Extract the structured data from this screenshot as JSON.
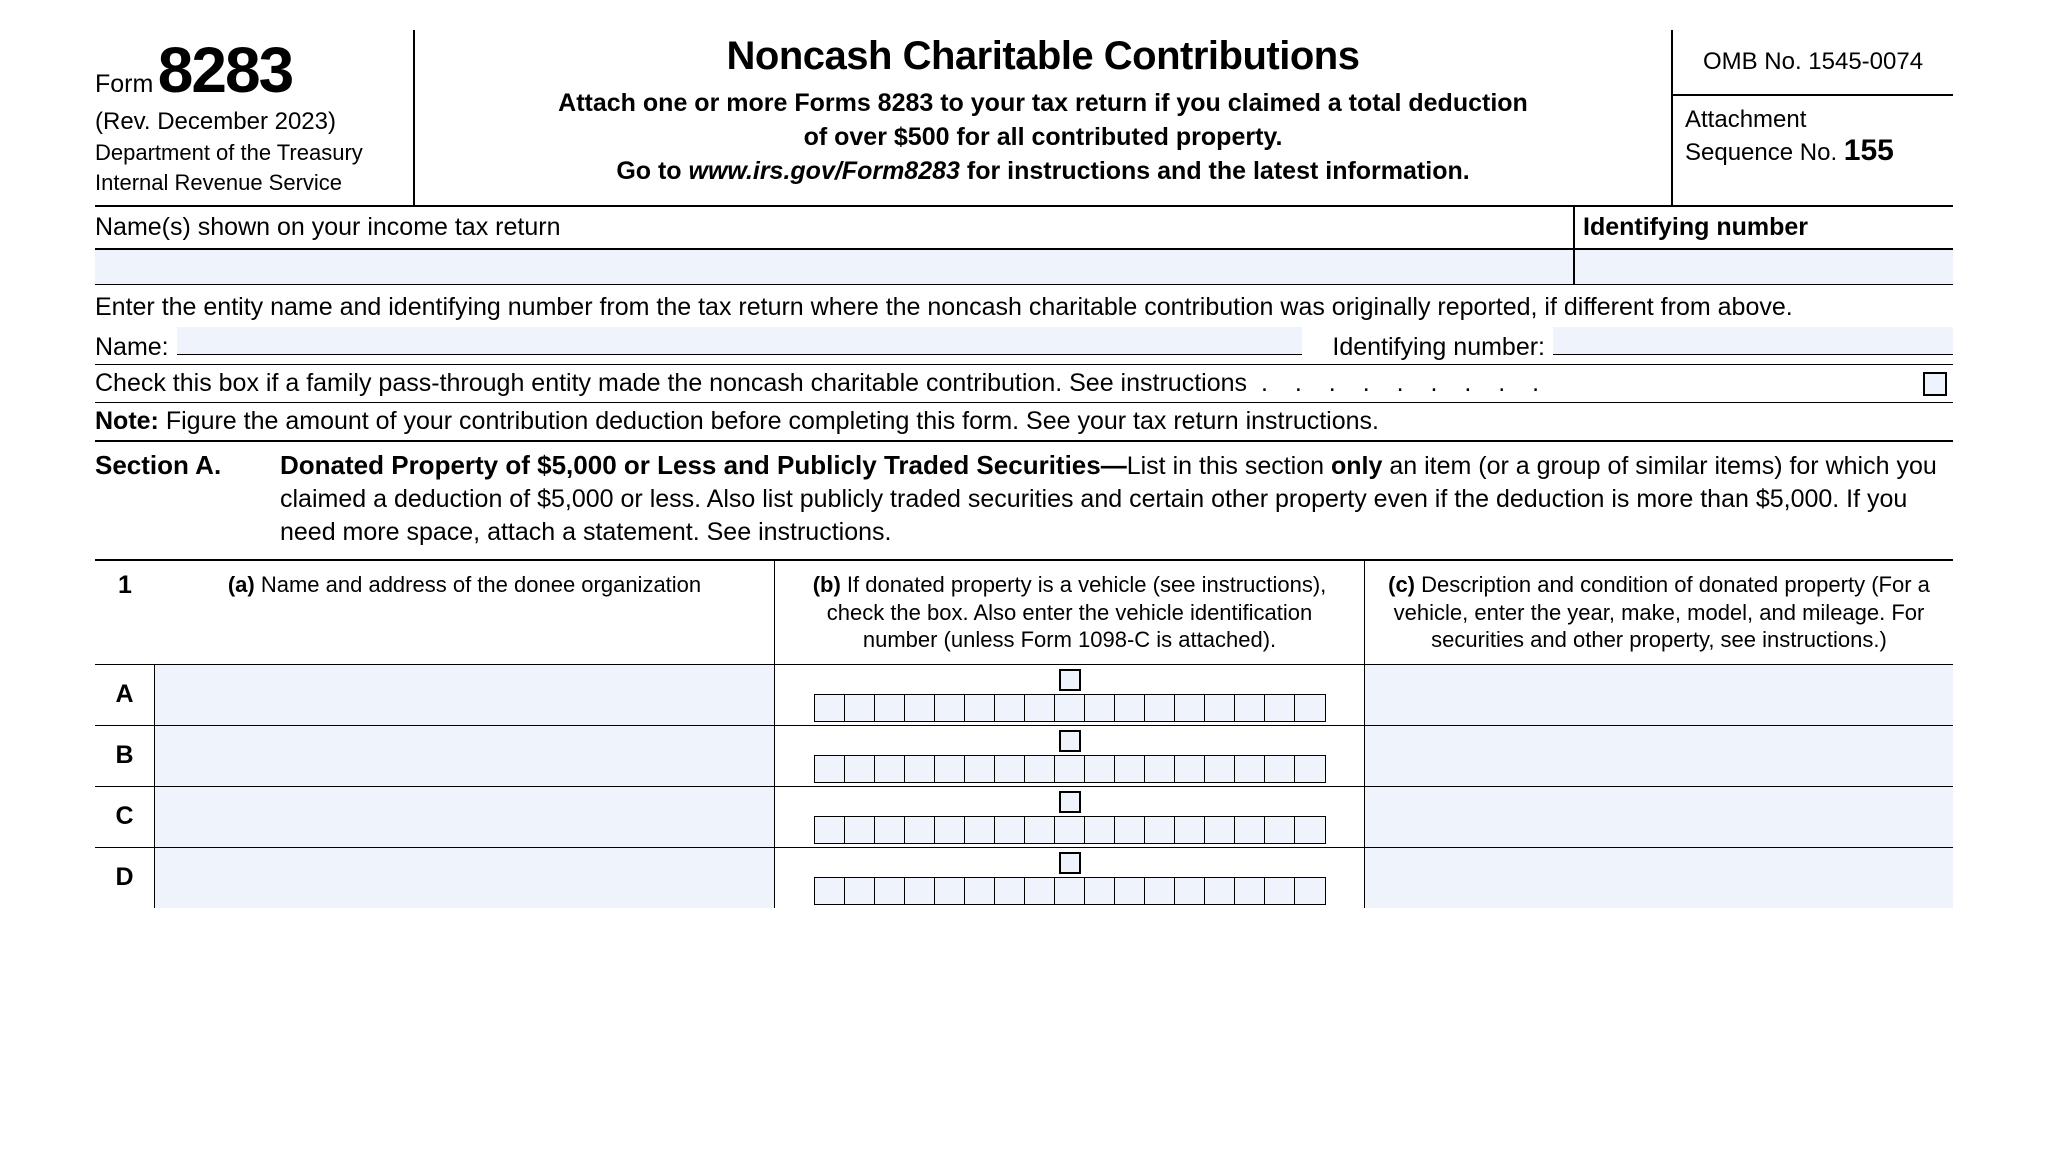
{
  "header": {
    "form_label": "Form",
    "form_number": "8283",
    "revision": "(Rev. December 2023)",
    "department": "Department of the Treasury",
    "agency": "Internal Revenue Service",
    "title": "Noncash Charitable Contributions",
    "subtitle_line1": "Attach one or more Forms 8283 to your tax return if you claimed a total deduction",
    "subtitle_line2": "of over $500 for all contributed property.",
    "subtitle_line3_prefix": "Go to ",
    "subtitle_line3_url": "www.irs.gov/Form8283",
    "subtitle_line3_suffix": " for instructions and the latest information.",
    "omb": "OMB No. 1545-0074",
    "attachment_label": "Attachment",
    "sequence_label": "Sequence No. ",
    "sequence_number": "155"
  },
  "id_section": {
    "names_label": "Name(s) shown on your income tax return",
    "identifying_label": "Identifying number"
  },
  "entity": {
    "instruction": "Enter the entity name and identifying number from the tax return where the noncash charitable contribution was originally reported, if different from above.",
    "name_label": "Name:",
    "id_label": "Identifying number:",
    "checkbox_text": "Check this box if a family pass-through entity made the noncash charitable contribution. See instructions",
    "dots": ". . . . . . . . .",
    "note_label": "Note:",
    "note_text": " Figure the amount of your contribution deduction before completing this form. See your tax return instructions."
  },
  "section_a": {
    "label": "Section A.",
    "title": "Donated Property of $5,000 or Less and Publicly Traded Securities—",
    "text": "List in this section only an item (or a group of similar items) for which you claimed a deduction of $5,000 or less. Also list publicly traded securities and certain other property even if the deduction is more than $5,000. If you need more space, attach a statement. See instructions.",
    "only_word": "only"
  },
  "table": {
    "row_num": "1",
    "col_a_label": "(a)",
    "col_a_text": " Name and address of the donee organization",
    "col_b_label": "(b)",
    "col_b_text": " If donated property is a vehicle (see instructions), check the box. Also enter the vehicle identification number (unless Form 1098-C is attached).",
    "col_c_label": "(c)",
    "col_c_text": " Description and condition of donated property (For a vehicle, enter the year, make, model, and mileage. For securities and other property, see instructions.)",
    "rows": [
      "A",
      "B",
      "C",
      "D"
    ],
    "vin_length": 17
  }
}
